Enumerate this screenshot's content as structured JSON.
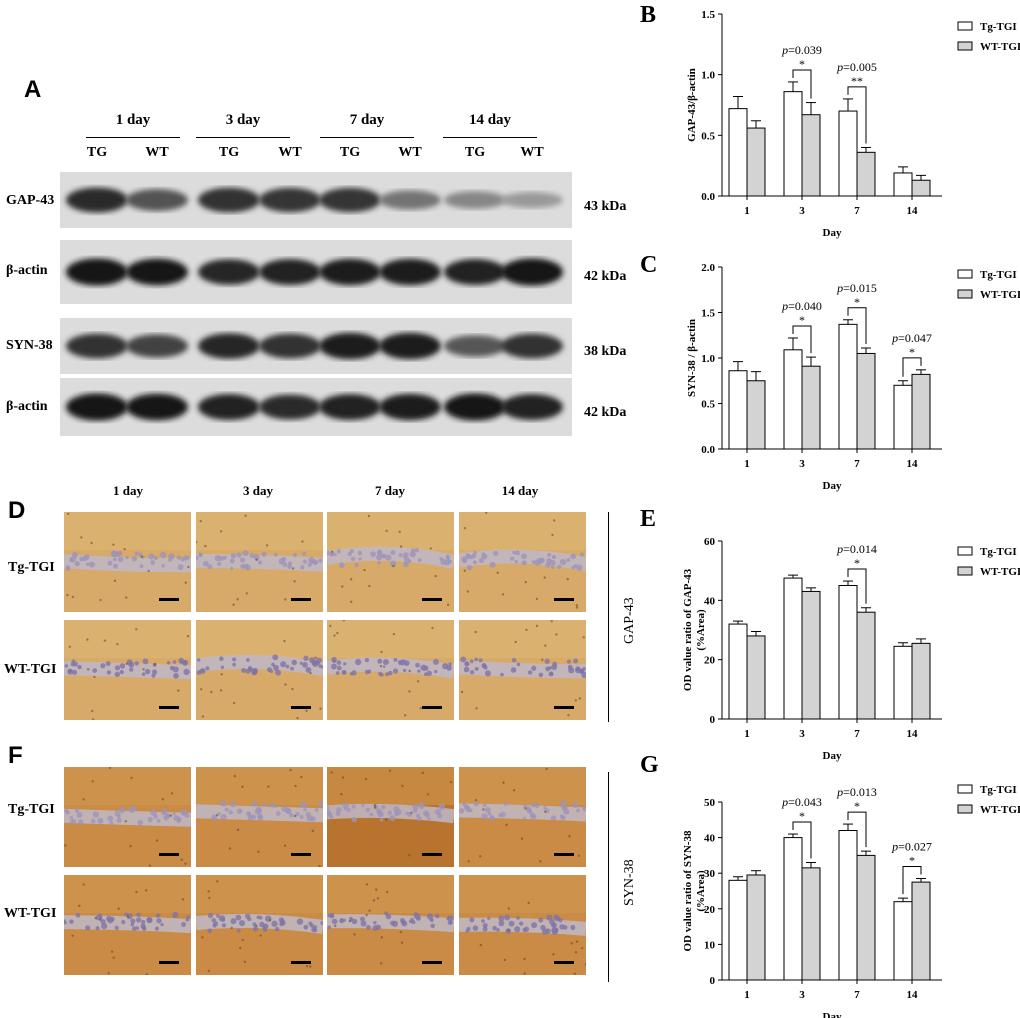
{
  "westernBlot": {
    "panel": "A",
    "days": [
      "1 day",
      "3 day",
      "7 day",
      "14 day"
    ],
    "groups": [
      "TG",
      "WT",
      "TG",
      "WT",
      "TG",
      "WT",
      "TG",
      "WT"
    ],
    "rows": [
      {
        "label": "GAP-43",
        "kda": "43 kDa"
      },
      {
        "label": "β-actin",
        "kda": "42 kDa"
      },
      {
        "label": "SYN-38",
        "kda": "38 kDa"
      },
      {
        "label": "β-actin",
        "kda": "42 kDa"
      }
    ],
    "intensity": [
      [
        0.82,
        0.62,
        0.8,
        0.78,
        0.78,
        0.45,
        0.35,
        0.25
      ],
      [
        0.95,
        0.92,
        0.85,
        0.88,
        0.9,
        0.9,
        0.88,
        0.95
      ],
      [
        0.8,
        0.7,
        0.85,
        0.8,
        0.9,
        0.9,
        0.6,
        0.8
      ],
      [
        0.95,
        0.92,
        0.88,
        0.82,
        0.88,
        0.9,
        0.95,
        0.88
      ]
    ]
  },
  "ihc": {
    "D": {
      "panel": "D",
      "days": [
        "1 day",
        "3 day",
        "7 day",
        "14 day"
      ],
      "rows": [
        "Tg-TGI",
        "WT-TGI"
      ],
      "marker": "GAP-43"
    },
    "F": {
      "panel": "F",
      "rows": [
        "Tg-TGI",
        "WT-TGI"
      ],
      "marker": "SYN-38"
    }
  },
  "chart_data": [
    {
      "panel": "B",
      "type": "bar",
      "categories": [
        "1",
        "3",
        "7",
        "14"
      ],
      "xlabel": "Day",
      "ylabel": "GAP-43/β-actin",
      "ylim": [
        0,
        1.5
      ],
      "yticks": [
        "0.0",
        "0.5",
        "1.0",
        "1.5"
      ],
      "series": [
        {
          "name": "Tg-TGI",
          "values": [
            0.72,
            0.86,
            0.7,
            0.19
          ],
          "errors": [
            0.1,
            0.08,
            0.1,
            0.05
          ]
        },
        {
          "name": "WT-TGI",
          "values": [
            0.56,
            0.67,
            0.36,
            0.13
          ],
          "errors": [
            0.06,
            0.1,
            0.04,
            0.04
          ]
        }
      ],
      "annotations": [
        {
          "category": "3",
          "p": "0.039",
          "stars": "*"
        },
        {
          "category": "7",
          "p": "0.005",
          "stars": "**"
        }
      ],
      "legend": "top-right"
    },
    {
      "panel": "C",
      "type": "bar",
      "categories": [
        "1",
        "3",
        "7",
        "14"
      ],
      "xlabel": "Day",
      "ylabel": "SYN-38 / β-actin",
      "ylim": [
        0,
        2.0
      ],
      "yticks": [
        "0.0",
        "0.5",
        "1.0",
        "1.5",
        "2.0"
      ],
      "series": [
        {
          "name": "Tg-TGI",
          "values": [
            0.86,
            1.09,
            1.37,
            0.7
          ],
          "errors": [
            0.1,
            0.13,
            0.05,
            0.05
          ]
        },
        {
          "name": "WT-TGI",
          "values": [
            0.75,
            0.91,
            1.05,
            0.82
          ],
          "errors": [
            0.1,
            0.1,
            0.06,
            0.05
          ]
        }
      ],
      "annotations": [
        {
          "category": "3",
          "p": "0.040",
          "stars": "*"
        },
        {
          "category": "7",
          "p": "0.015",
          "stars": "*"
        },
        {
          "category": "14",
          "p": "0.047",
          "stars": "*"
        }
      ],
      "legend": "top-right"
    },
    {
      "panel": "E",
      "type": "bar",
      "categories": [
        "1",
        "3",
        "7",
        "14"
      ],
      "xlabel": "Day",
      "ylabel": "OD value ratio of GAP-43",
      "ylabel2": "(%Area)",
      "ylim": [
        0,
        60
      ],
      "yticks": [
        "0",
        "20",
        "40",
        "60"
      ],
      "series": [
        {
          "name": "Tg-TGI",
          "values": [
            32.0,
            47.5,
            45.0,
            24.5
          ],
          "errors": [
            1.0,
            1.0,
            1.5,
            1.2
          ]
        },
        {
          "name": "WT-TGI",
          "values": [
            28.0,
            43.0,
            36.0,
            25.5
          ],
          "errors": [
            1.5,
            1.2,
            1.5,
            1.5
          ]
        }
      ],
      "annotations": [
        {
          "category": "7",
          "p": "0.014",
          "stars": "*"
        }
      ],
      "legend": "top-right"
    },
    {
      "panel": "G",
      "type": "bar",
      "categories": [
        "1",
        "3",
        "7",
        "14"
      ],
      "xlabel": "Day",
      "ylabel": "OD value ratio of SYN-38",
      "ylabel2": "(%Area)",
      "ylim": [
        0,
        50
      ],
      "yticks": [
        "0",
        "10",
        "20",
        "30",
        "40",
        "50"
      ],
      "series": [
        {
          "name": "Tg-TGI",
          "values": [
            28.0,
            40.0,
            42.0,
            22.0
          ],
          "errors": [
            1.0,
            1.0,
            1.8,
            1.0
          ]
        },
        {
          "name": "WT-TGI",
          "values": [
            29.5,
            31.5,
            35.0,
            27.5
          ],
          "errors": [
            1.2,
            1.5,
            1.2,
            1.0
          ]
        }
      ],
      "annotations": [
        {
          "category": "3",
          "p": "0.043",
          "stars": "*"
        },
        {
          "category": "7",
          "p": "0.013",
          "stars": "*"
        },
        {
          "category": "14",
          "p": "0.027",
          "stars": "*"
        }
      ],
      "legend": "top-right"
    }
  ]
}
